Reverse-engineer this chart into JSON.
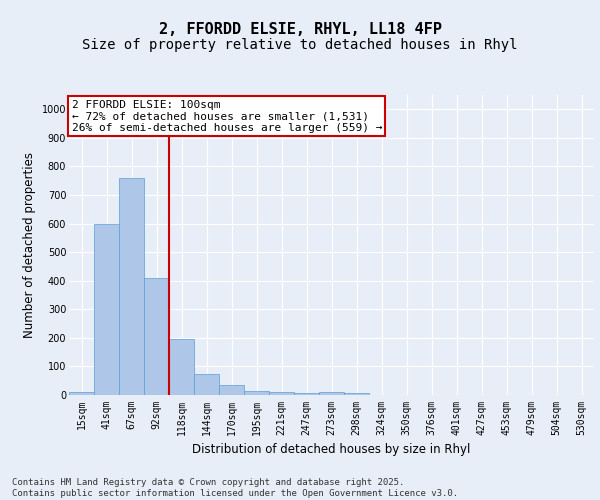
{
  "title": "2, FFORDD ELSIE, RHYL, LL18 4FP",
  "subtitle": "Size of property relative to detached houses in Rhyl",
  "xlabel": "Distribution of detached houses by size in Rhyl",
  "ylabel": "Number of detached properties",
  "categories": [
    "15sqm",
    "41sqm",
    "67sqm",
    "92sqm",
    "118sqm",
    "144sqm",
    "170sqm",
    "195sqm",
    "221sqm",
    "247sqm",
    "273sqm",
    "298sqm",
    "324sqm",
    "350sqm",
    "376sqm",
    "401sqm",
    "427sqm",
    "453sqm",
    "479sqm",
    "504sqm",
    "530sqm"
  ],
  "values": [
    10,
    600,
    760,
    410,
    195,
    75,
    35,
    15,
    10,
    8,
    10,
    8,
    0,
    0,
    0,
    0,
    0,
    0,
    0,
    0,
    0
  ],
  "bar_color": "#aec6e8",
  "bar_edge_color": "#5a9fd4",
  "vline_x": 3.5,
  "vline_color": "#cc0000",
  "annotation_text": "2 FFORDD ELSIE: 100sqm\n← 72% of detached houses are smaller (1,531)\n26% of semi-detached houses are larger (559) →",
  "annotation_box_color": "#ffffff",
  "annotation_box_edge_color": "#cc0000",
  "ylim": [
    0,
    1050
  ],
  "yticks": [
    0,
    100,
    200,
    300,
    400,
    500,
    600,
    700,
    800,
    900,
    1000
  ],
  "bg_color": "#e8eef8",
  "footer_text": "Contains HM Land Registry data © Crown copyright and database right 2025.\nContains public sector information licensed under the Open Government Licence v3.0.",
  "title_fontsize": 11,
  "subtitle_fontsize": 10,
  "axis_fontsize": 8.5,
  "tick_fontsize": 7,
  "footer_fontsize": 6.5,
  "ann_fontsize": 8
}
